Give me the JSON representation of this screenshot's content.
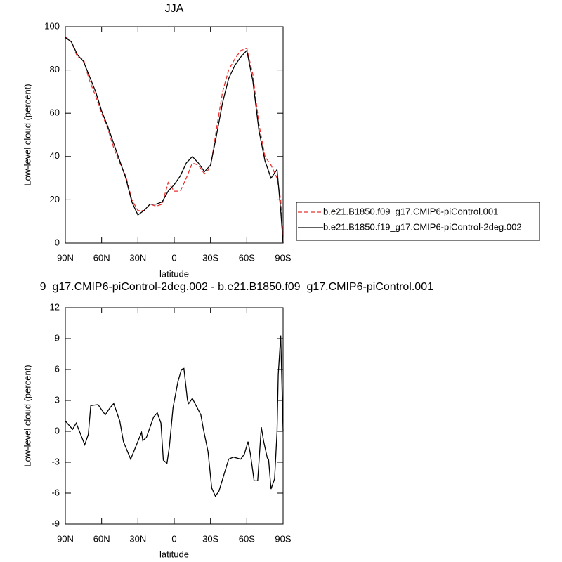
{
  "chart_data": [
    {
      "type": "line",
      "title": "JJA",
      "xlabel": "latitude",
      "ylabel": "Low-level cloud (percent)",
      "xlim": [
        90,
        -90
      ],
      "ylim": [
        0,
        100
      ],
      "xticks": [
        {
          "value": 90,
          "label": "90N"
        },
        {
          "value": 60,
          "label": "60N"
        },
        {
          "value": 30,
          "label": "30N"
        },
        0,
        {
          "value": -30,
          "label": "30S"
        },
        {
          "value": -60,
          "label": "60S"
        },
        {
          "value": -90,
          "label": "90S"
        }
      ],
      "yticks": [
        0,
        20,
        40,
        60,
        80,
        100
      ],
      "legend": "right",
      "x": [
        90,
        85,
        80,
        75,
        70,
        65,
        60,
        55,
        50,
        45,
        40,
        35,
        30,
        25,
        20,
        15,
        10,
        5,
        0,
        -5,
        -10,
        -15,
        -20,
        -25,
        -30,
        -35,
        -40,
        -45,
        -50,
        -55,
        -60,
        -65,
        -70,
        -75,
        -80,
        -85,
        -88,
        -90
      ],
      "series": [
        {
          "name": "b.e21.B1850.f09_g17.CMIP6-piControl.001",
          "color": "#e8312f",
          "style": "dashed",
          "values": [
            95.5,
            93,
            86,
            85,
            75,
            68,
            60,
            53,
            44,
            37,
            31,
            20,
            15,
            15,
            18,
            17,
            18,
            28,
            24,
            24,
            30,
            37,
            36,
            32,
            35,
            53,
            70,
            80,
            85,
            89,
            90,
            78,
            55,
            40,
            36,
            30,
            20,
            0
          ]
        },
        {
          "name": "b.e21.B1850.f19_g17.CMIP6-piControl-2deg.002",
          "color": "#000000",
          "style": "solid",
          "values": [
            95,
            93,
            87,
            84,
            77,
            70,
            61,
            54,
            46,
            38,
            30,
            19,
            13,
            15,
            18,
            18,
            19,
            24,
            27,
            31,
            37,
            40,
            37,
            33,
            36,
            50,
            65,
            76,
            82,
            86,
            89,
            75,
            52,
            38,
            30,
            34,
            15,
            0
          ]
        }
      ]
    },
    {
      "type": "line",
      "title": "9_g17.CMIP6-piControl-2deg.002 - b.e21.B1850.f09_g17.CMIP6-piControl.001",
      "xlabel": "latitude",
      "ylabel": "Low-level cloud (percent)",
      "xlim": [
        90,
        -90
      ],
      "ylim": [
        -9,
        12
      ],
      "xticks": [
        {
          "value": 90,
          "label": "90N"
        },
        {
          "value": 60,
          "label": "60N"
        },
        {
          "value": 30,
          "label": "30N"
        },
        0,
        {
          "value": -30,
          "label": "30S"
        },
        {
          "value": -60,
          "label": "60S"
        },
        {
          "value": -90,
          "label": "90S"
        }
      ],
      "yticks": [
        -9,
        -6,
        -3,
        0,
        3,
        6,
        9,
        12
      ],
      "x": [
        90,
        84,
        81,
        74,
        71,
        69,
        63,
        57,
        53,
        50,
        45,
        42,
        36,
        27,
        26,
        23,
        17,
        14,
        11,
        9,
        6,
        4,
        1,
        -3,
        -6,
        -8,
        -11,
        -12,
        -15,
        -22,
        -24,
        -28,
        -31,
        -34,
        -37,
        -45,
        -49,
        -55,
        -58,
        -61,
        -63,
        -66,
        -69,
        -72,
        -74,
        -77,
        -78,
        -80,
        -83,
        -85,
        -86,
        -88,
        -90
      ],
      "series": [
        {
          "color": "#000000",
          "style": "solid",
          "values": [
            1.0,
            0.2,
            0.8,
            -1.3,
            -0.3,
            2.5,
            2.6,
            1.6,
            2.3,
            2.7,
            1.0,
            -1.0,
            -2.7,
            -0.1,
            -0.9,
            -0.6,
            1.4,
            1.8,
            0.8,
            -2.8,
            -3.1,
            -1.5,
            2.3,
            4.8,
            6.0,
            6.1,
            3.0,
            2.7,
            3.2,
            1.6,
            0.3,
            -2.0,
            -5.5,
            -6.3,
            -5.8,
            -2.7,
            -2.5,
            -2.7,
            -2.2,
            -1.0,
            -2.2,
            -4.8,
            -4.8,
            0.4,
            -1.0,
            -2.6,
            -2.7,
            -5.6,
            -4.6,
            0,
            5.5,
            9.3,
            0
          ]
        }
      ]
    }
  ]
}
